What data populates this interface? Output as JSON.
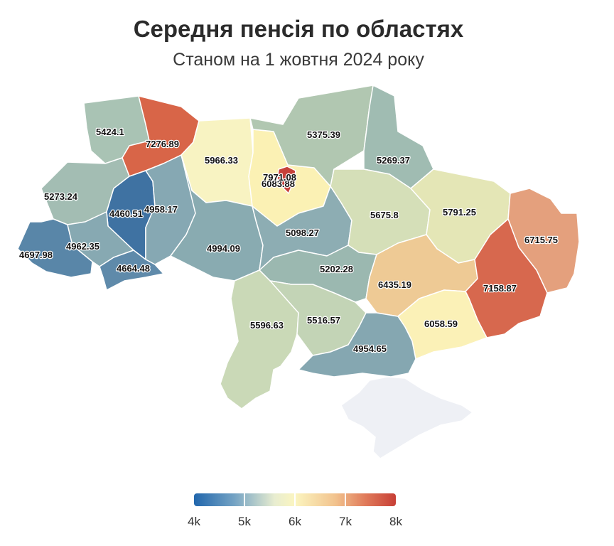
{
  "title": "Середня пенсія по областях",
  "subtitle": "Станом на 1 жовтня 2024 року",
  "map_data": {
    "type": "choropleth",
    "country": "Ukraine",
    "color_scale": {
      "min": 4000,
      "max": 8000,
      "colors": [
        "#2166ac",
        "#74a3c4",
        "#e8edd0",
        "#fbf5c0",
        "#f2c38e",
        "#e07a5a",
        "#c73f36"
      ],
      "tick_values": [
        4000,
        5000,
        6000,
        7000,
        8000
      ],
      "tick_labels": [
        "4k",
        "5k",
        "6k",
        "7k",
        "8k"
      ]
    },
    "regions": [
      {
        "id": "volyn",
        "label": "5424.1",
        "value": 5424.1,
        "color": "#a9c3b4"
      },
      {
        "id": "rivne",
        "label": "7276.89",
        "value": 7276.89,
        "color": "#d86548"
      },
      {
        "id": "zhytomyr",
        "label": "5966.33",
        "value": 5966.33,
        "color": "#f8f3c2"
      },
      {
        "id": "kyiv-oblast",
        "label": "6083.88",
        "value": 6083.88,
        "color": "#fbf1b4"
      },
      {
        "id": "kyiv-city",
        "label": "7971.08",
        "value": 7971.08,
        "color": "#c6413a"
      },
      {
        "id": "chernihiv",
        "label": "5375.39",
        "value": 5375.39,
        "color": "#b1c7b1"
      },
      {
        "id": "sumy",
        "label": "5269.37",
        "value": 5269.37,
        "color": "#a0bcb2"
      },
      {
        "id": "lviv",
        "label": "5273.24",
        "value": 5273.24,
        "color": "#a3bdb3"
      },
      {
        "id": "ternopil",
        "label": "4460.51",
        "value": 4460.51,
        "color": "#3f72a2"
      },
      {
        "id": "khmelnytskyi",
        "label": "4958.17",
        "value": 4958.17,
        "color": "#86a8b3"
      },
      {
        "id": "zakarpattia",
        "label": "4697.98",
        "value": 4697.98,
        "color": "#5986a8"
      },
      {
        "id": "ivano-frankivsk",
        "label": "4962.35",
        "value": 4962.35,
        "color": "#87a9b2"
      },
      {
        "id": "chernivtsi",
        "label": "4664.48",
        "value": 4664.48,
        "color": "#5f8aaa"
      },
      {
        "id": "vinnytsia",
        "label": "4994.09",
        "value": 4994.09,
        "color": "#89abb1"
      },
      {
        "id": "cherkasy",
        "label": "5098.27",
        "value": 5098.27,
        "color": "#8dadb3"
      },
      {
        "id": "poltava",
        "label": "5675.8",
        "value": 5675.8,
        "color": "#d5dfb8"
      },
      {
        "id": "kharkiv",
        "label": "5791.25",
        "value": 5791.25,
        "color": "#e4e6b6"
      },
      {
        "id": "luhansk",
        "label": "6715.75",
        "value": 6715.75,
        "color": "#e4a07d"
      },
      {
        "id": "kirovohrad",
        "label": "5202.28",
        "value": 5202.28,
        "color": "#9bb8b0"
      },
      {
        "id": "dnipropetrovsk",
        "label": "6435.19",
        "value": 6435.19,
        "color": "#eeca95"
      },
      {
        "id": "donetsk",
        "label": "7158.87",
        "value": 7158.87,
        "color": "#d7684e"
      },
      {
        "id": "odesa",
        "label": "5596.63",
        "value": 5596.63,
        "color": "#cad9b7"
      },
      {
        "id": "mykolaiv",
        "label": "5516.57",
        "value": 5516.57,
        "color": "#c3d4b6"
      },
      {
        "id": "zaporizhzhia",
        "label": "6058.59",
        "value": 6058.59,
        "color": "#fbf1b7"
      },
      {
        "id": "kherson",
        "label": "4954.65",
        "value": 4954.65,
        "color": "#85a7b1"
      },
      {
        "id": "crimea",
        "label": "",
        "value": null,
        "color": "#eef0f5"
      }
    ]
  }
}
